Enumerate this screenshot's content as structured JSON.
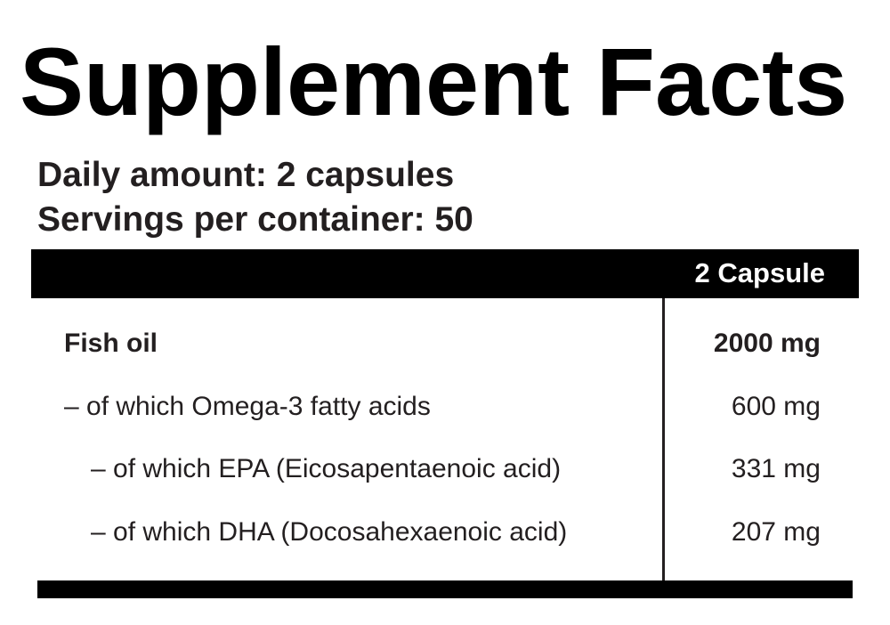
{
  "title": "Supplement Facts",
  "daily_amount": "Daily amount: 2 capsules",
  "servings": "Servings per container: 50",
  "table": {
    "header": "2 Capsule",
    "rows": [
      {
        "name": "Fish oil",
        "amount": "2000 mg",
        "bold": true
      },
      {
        "name": "– of which Omega-3 fatty acids",
        "amount": "600 mg"
      },
      {
        "name": "– of which EPA (Eicosapentaenoic acid)",
        "amount": "331 mg"
      },
      {
        "name": "– of which DHA (Docosahexaenoic acid)",
        "amount": "207 mg"
      }
    ]
  }
}
